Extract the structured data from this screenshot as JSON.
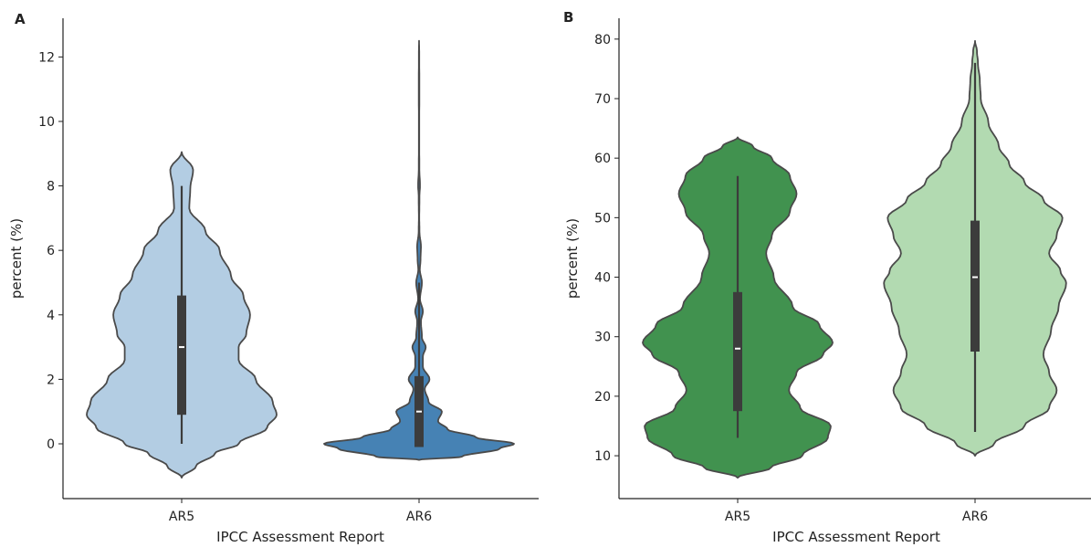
{
  "chart_data": [
    {
      "type": "violin",
      "panel_label": "A",
      "xlabel": "IPCC Assessment Report",
      "ylabel": "percent (%)",
      "categories": [
        "AR5",
        "AR6"
      ],
      "ylim": [
        -1.7,
        13.2
      ],
      "yticks": [
        0,
        2,
        4,
        6,
        8,
        10,
        12
      ],
      "series": [
        {
          "category": "AR5",
          "color": "#b3cde3",
          "box": {
            "whisker_low": 0,
            "q1": 0.9,
            "median": 3.0,
            "q3": 4.6,
            "whisker_high": 8.0
          },
          "density": [
            [
              -1.05,
              0.0
            ],
            [
              -0.7,
              0.15
            ],
            [
              -0.3,
              0.35
            ],
            [
              0.0,
              0.6
            ],
            [
              0.5,
              0.9
            ],
            [
              0.9,
              1.0
            ],
            [
              1.3,
              0.96
            ],
            [
              2.0,
              0.78
            ],
            [
              2.6,
              0.6
            ],
            [
              3.0,
              0.6
            ],
            [
              3.4,
              0.68
            ],
            [
              4.0,
              0.72
            ],
            [
              4.6,
              0.65
            ],
            [
              5.2,
              0.52
            ],
            [
              6.0,
              0.4
            ],
            [
              6.6,
              0.25
            ],
            [
              7.3,
              0.08
            ],
            [
              7.9,
              0.09
            ],
            [
              8.5,
              0.12
            ],
            [
              9.05,
              0.0
            ]
          ]
        },
        {
          "category": "AR6",
          "color": "#4682b4",
          "box": {
            "whisker_low": -0.1,
            "q1": -0.1,
            "median": 1.0,
            "q3": 2.1,
            "whisker_high": 5.0
          },
          "density": [
            [
              -0.5,
              0.0
            ],
            [
              -0.4,
              0.45
            ],
            [
              -0.15,
              0.85
            ],
            [
              0.0,
              1.0
            ],
            [
              0.2,
              0.6
            ],
            [
              0.45,
              0.3
            ],
            [
              0.7,
              0.2
            ],
            [
              1.0,
              0.24
            ],
            [
              1.3,
              0.1
            ],
            [
              1.7,
              0.06
            ],
            [
              2.0,
              0.11
            ],
            [
              2.4,
              0.04
            ],
            [
              2.7,
              0.04
            ],
            [
              3.0,
              0.07
            ],
            [
              3.3,
              0.03
            ],
            [
              3.8,
              0.02
            ],
            [
              4.1,
              0.04
            ],
            [
              4.5,
              0.01
            ],
            [
              5.0,
              0.03
            ],
            [
              5.4,
              0.008
            ],
            [
              5.7,
              0.015
            ],
            [
              6.1,
              0.02
            ],
            [
              6.6,
              0.004
            ],
            [
              7.0,
              0.002
            ],
            [
              7.7,
              0.004
            ],
            [
              8.0,
              0.01
            ],
            [
              8.5,
              0.003
            ],
            [
              9.2,
              0.002
            ],
            [
              10.0,
              0.002
            ],
            [
              11.0,
              0.003
            ],
            [
              12.0,
              0.002
            ],
            [
              12.5,
              0.0
            ]
          ]
        }
      ]
    },
    {
      "type": "violin",
      "panel_label": "B",
      "xlabel": "IPCC Assessment Report",
      "ylabel": "percent (%)",
      "categories": [
        "AR5",
        "AR6"
      ],
      "ylim": [
        2.8,
        83.5
      ],
      "yticks": [
        10,
        20,
        30,
        40,
        50,
        60,
        70,
        80
      ],
      "series": [
        {
          "category": "AR5",
          "color": "#41924f",
          "box": {
            "whisker_low": 13,
            "q1": 17.5,
            "median": 28,
            "q3": 37.5,
            "whisker_high": 57
          },
          "density": [
            [
              6.3,
              0.0
            ],
            [
              8,
              0.35
            ],
            [
              10,
              0.68
            ],
            [
              13,
              0.95
            ],
            [
              15,
              0.98
            ],
            [
              18,
              0.66
            ],
            [
              21,
              0.54
            ],
            [
              24,
              0.62
            ],
            [
              27,
              0.9
            ],
            [
              29,
              1.0
            ],
            [
              32,
              0.86
            ],
            [
              35,
              0.58
            ],
            [
              40,
              0.38
            ],
            [
              44,
              0.3
            ],
            [
              47,
              0.36
            ],
            [
              51,
              0.55
            ],
            [
              54,
              0.62
            ],
            [
              57,
              0.55
            ],
            [
              60,
              0.36
            ],
            [
              62,
              0.16
            ],
            [
              63.5,
              0.0
            ]
          ]
        },
        {
          "category": "AR6",
          "color": "#b2dab1",
          "box": {
            "whisker_low": 14,
            "q1": 27.5,
            "median": 40,
            "q3": 49.5,
            "whisker_high": 76
          },
          "density": [
            [
              10,
              0.0
            ],
            [
              12,
              0.2
            ],
            [
              15,
              0.52
            ],
            [
              18,
              0.78
            ],
            [
              21,
              0.86
            ],
            [
              24,
              0.78
            ],
            [
              27,
              0.72
            ],
            [
              31,
              0.8
            ],
            [
              35,
              0.88
            ],
            [
              39,
              0.96
            ],
            [
              41,
              0.9
            ],
            [
              44,
              0.78
            ],
            [
              47,
              0.86
            ],
            [
              50,
              0.92
            ],
            [
              53,
              0.72
            ],
            [
              56,
              0.52
            ],
            [
              59,
              0.36
            ],
            [
              62,
              0.25
            ],
            [
              66,
              0.14
            ],
            [
              70,
              0.06
            ],
            [
              73,
              0.05
            ],
            [
              76,
              0.03
            ],
            [
              78,
              0.02
            ],
            [
              79.7,
              0.0
            ]
          ]
        }
      ]
    }
  ]
}
